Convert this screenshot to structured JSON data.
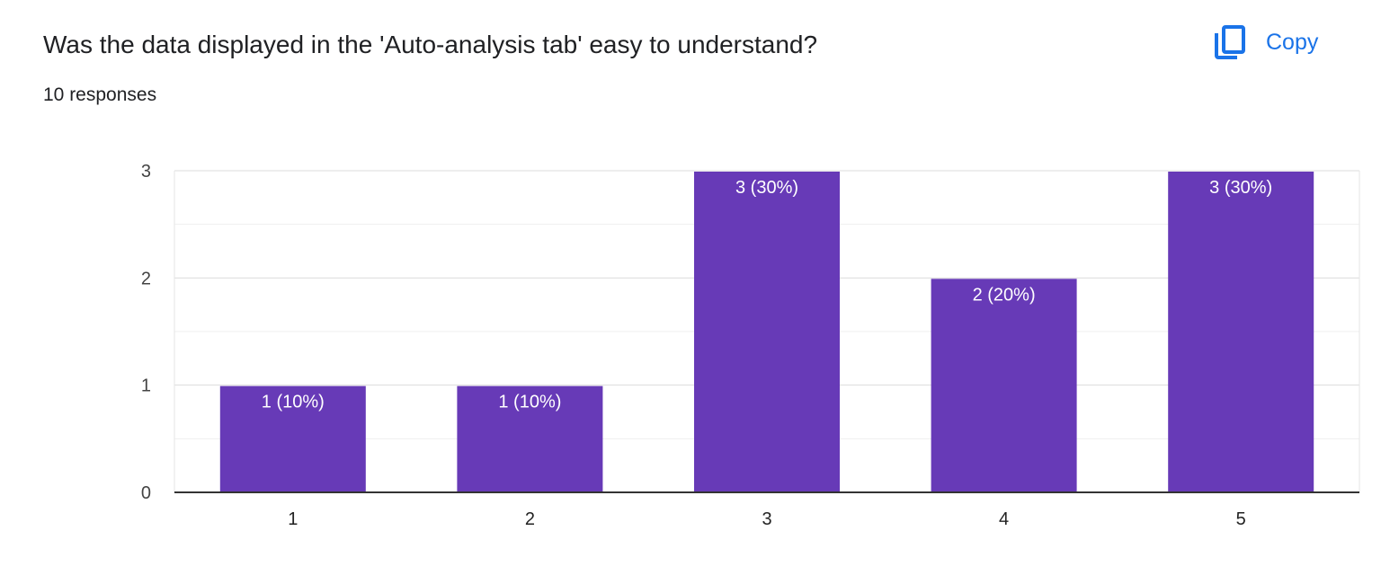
{
  "question": {
    "title": "Was the data displayed in the 'Auto-analysis tab' easy to understand?",
    "responses": "10 responses"
  },
  "copy_button": {
    "label": "Copy",
    "icon": "copy-icon",
    "color": "#1a73e8"
  },
  "chart_data": {
    "type": "bar",
    "categories": [
      "1",
      "2",
      "3",
      "4",
      "5"
    ],
    "values": [
      1,
      1,
      3,
      2,
      3
    ],
    "data_labels": [
      "1 (10%)",
      "1 (10%)",
      "3 (30%)",
      "2 (20%)",
      "3 (30%)"
    ],
    "ylim": [
      0,
      3
    ],
    "y_ticks": [
      0,
      1,
      2,
      3
    ],
    "grid": true,
    "bar_color": "#673ab7",
    "title": "",
    "xlabel": "",
    "ylabel": ""
  }
}
